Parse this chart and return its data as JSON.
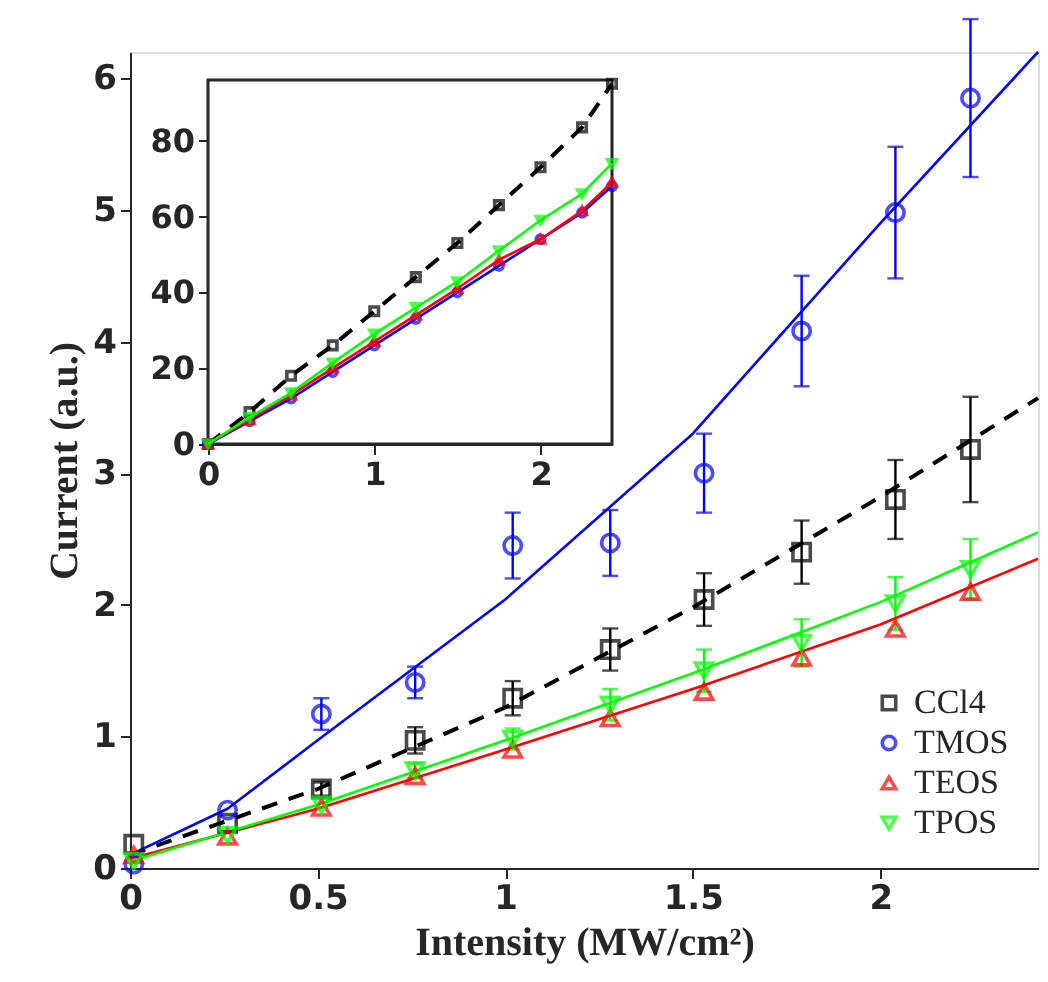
{
  "chart_data": [
    {
      "type": "scatter",
      "xlabel": "Intensity (MW/cm²)",
      "ylabel": "Current (a.u.)",
      "xlim": [
        0,
        2.42
      ],
      "ylim": [
        0,
        6.2
      ],
      "xticks": [
        0,
        0.5,
        1,
        1.5,
        2
      ],
      "yticks": [
        0,
        1,
        2,
        3,
        4,
        5,
        6
      ],
      "grid": false,
      "legend": "bottom right",
      "x": [
        0.01,
        0.26,
        0.51,
        0.76,
        1.02,
        1.28,
        1.53,
        1.79,
        2.04,
        2.24
      ],
      "series": [
        {
          "name": "CCl4",
          "color": "#000000",
          "marker": "square",
          "values": [
            0.18,
            0.34,
            0.6,
            0.97,
            1.29,
            1.66,
            2.04,
            2.4,
            2.8,
            3.18
          ],
          "errors": [
            null,
            null,
            0.05,
            0.1,
            0.13,
            0.16,
            0.2,
            0.24,
            0.3,
            0.4
          ]
        },
        {
          "name": "TMOS",
          "color": "#0000ff",
          "marker": "circle",
          "values": [
            0.03,
            0.44,
            1.17,
            1.41,
            2.45,
            2.47,
            3.0,
            4.08,
            4.98,
            5.85
          ],
          "errors": [
            null,
            null,
            0.12,
            0.12,
            0.25,
            0.25,
            0.3,
            0.42,
            0.5,
            0.6
          ]
        },
        {
          "name": "TEOS",
          "color": "#ff0000",
          "marker": "triangle",
          "values": [
            0.1,
            0.24,
            0.46,
            0.7,
            0.9,
            1.14,
            1.34,
            1.6,
            1.82,
            2.1
          ]
        },
        {
          "name": "TPOS",
          "color": "#00ff00",
          "marker": "triangle-down",
          "values": [
            0.05,
            0.25,
            0.48,
            0.74,
            0.98,
            1.24,
            1.5,
            1.71,
            2.01,
            2.27
          ],
          "errors": [
            null,
            null,
            null,
            0.06,
            0.08,
            0.12,
            0.16,
            0.18,
            0.2,
            0.23
          ]
        },
        {
          "type": "line",
          "color": "#000000",
          "line_style": "dashed",
          "x": [
            0,
            0.5,
            1,
            1.5,
            2,
            2.42
          ],
          "values": [
            0.1,
            0.6,
            1.22,
            1.98,
            2.82,
            3.57
          ]
        },
        {
          "type": "line",
          "color": "#0000ff",
          "line_style": "solid",
          "x": [
            0,
            0.26,
            0.5,
            1,
            1.5,
            2,
            2.42
          ],
          "values": [
            0.1,
            0.45,
            0.97,
            2.04,
            3.3,
            4.9,
            6.2
          ]
        },
        {
          "type": "line",
          "color": "#ff0000",
          "line_style": "solid",
          "x": [
            0,
            0.5,
            1,
            1.5,
            2,
            2.42
          ],
          "values": [
            0.07,
            0.45,
            0.9,
            1.36,
            1.85,
            2.35
          ]
        },
        {
          "type": "line",
          "color": "#00ff00",
          "line_style": "solid",
          "x": [
            0,
            0.5,
            1,
            1.5,
            2,
            2.42
          ],
          "values": [
            0.05,
            0.48,
            0.97,
            1.48,
            2.02,
            2.55
          ]
        }
      ]
    },
    {
      "type": "line",
      "xlim": [
        0,
        2.43
      ],
      "ylim": [
        0,
        96
      ],
      "xticks": [
        0,
        1,
        2
      ],
      "yticks": [
        0,
        20,
        40,
        60,
        80
      ],
      "grid": false,
      "legend": false,
      "x": [
        0,
        0.25,
        0.5,
        0.75,
        1,
        1.25,
        1.5,
        1.75,
        2,
        2.25,
        2.43
      ],
      "series": [
        {
          "color": "#000000",
          "marker": "square",
          "line_style": "dashed",
          "values": [
            0,
            8.4,
            18,
            26,
            35,
            44,
            53,
            63,
            73,
            83.5,
            95
          ]
        },
        {
          "color": "#0000ff",
          "marker": "circle",
          "line_style": "solid",
          "values": [
            0,
            6,
            12,
            19,
            26,
            33,
            40,
            47,
            54,
            61,
            68
          ]
        },
        {
          "color": "#ff0000",
          "marker": "triangle",
          "line_style": "solid",
          "values": [
            0,
            6.4,
            12.9,
            20,
            27,
            34,
            41,
            48.6,
            54,
            61.5,
            69
          ]
        },
        {
          "color": "#00ff00",
          "marker": "triangle-down",
          "line_style": "solid",
          "values": [
            0,
            7,
            13.5,
            21.4,
            29,
            36,
            42.8,
            51,
            59,
            66,
            74
          ]
        }
      ]
    }
  ]
}
